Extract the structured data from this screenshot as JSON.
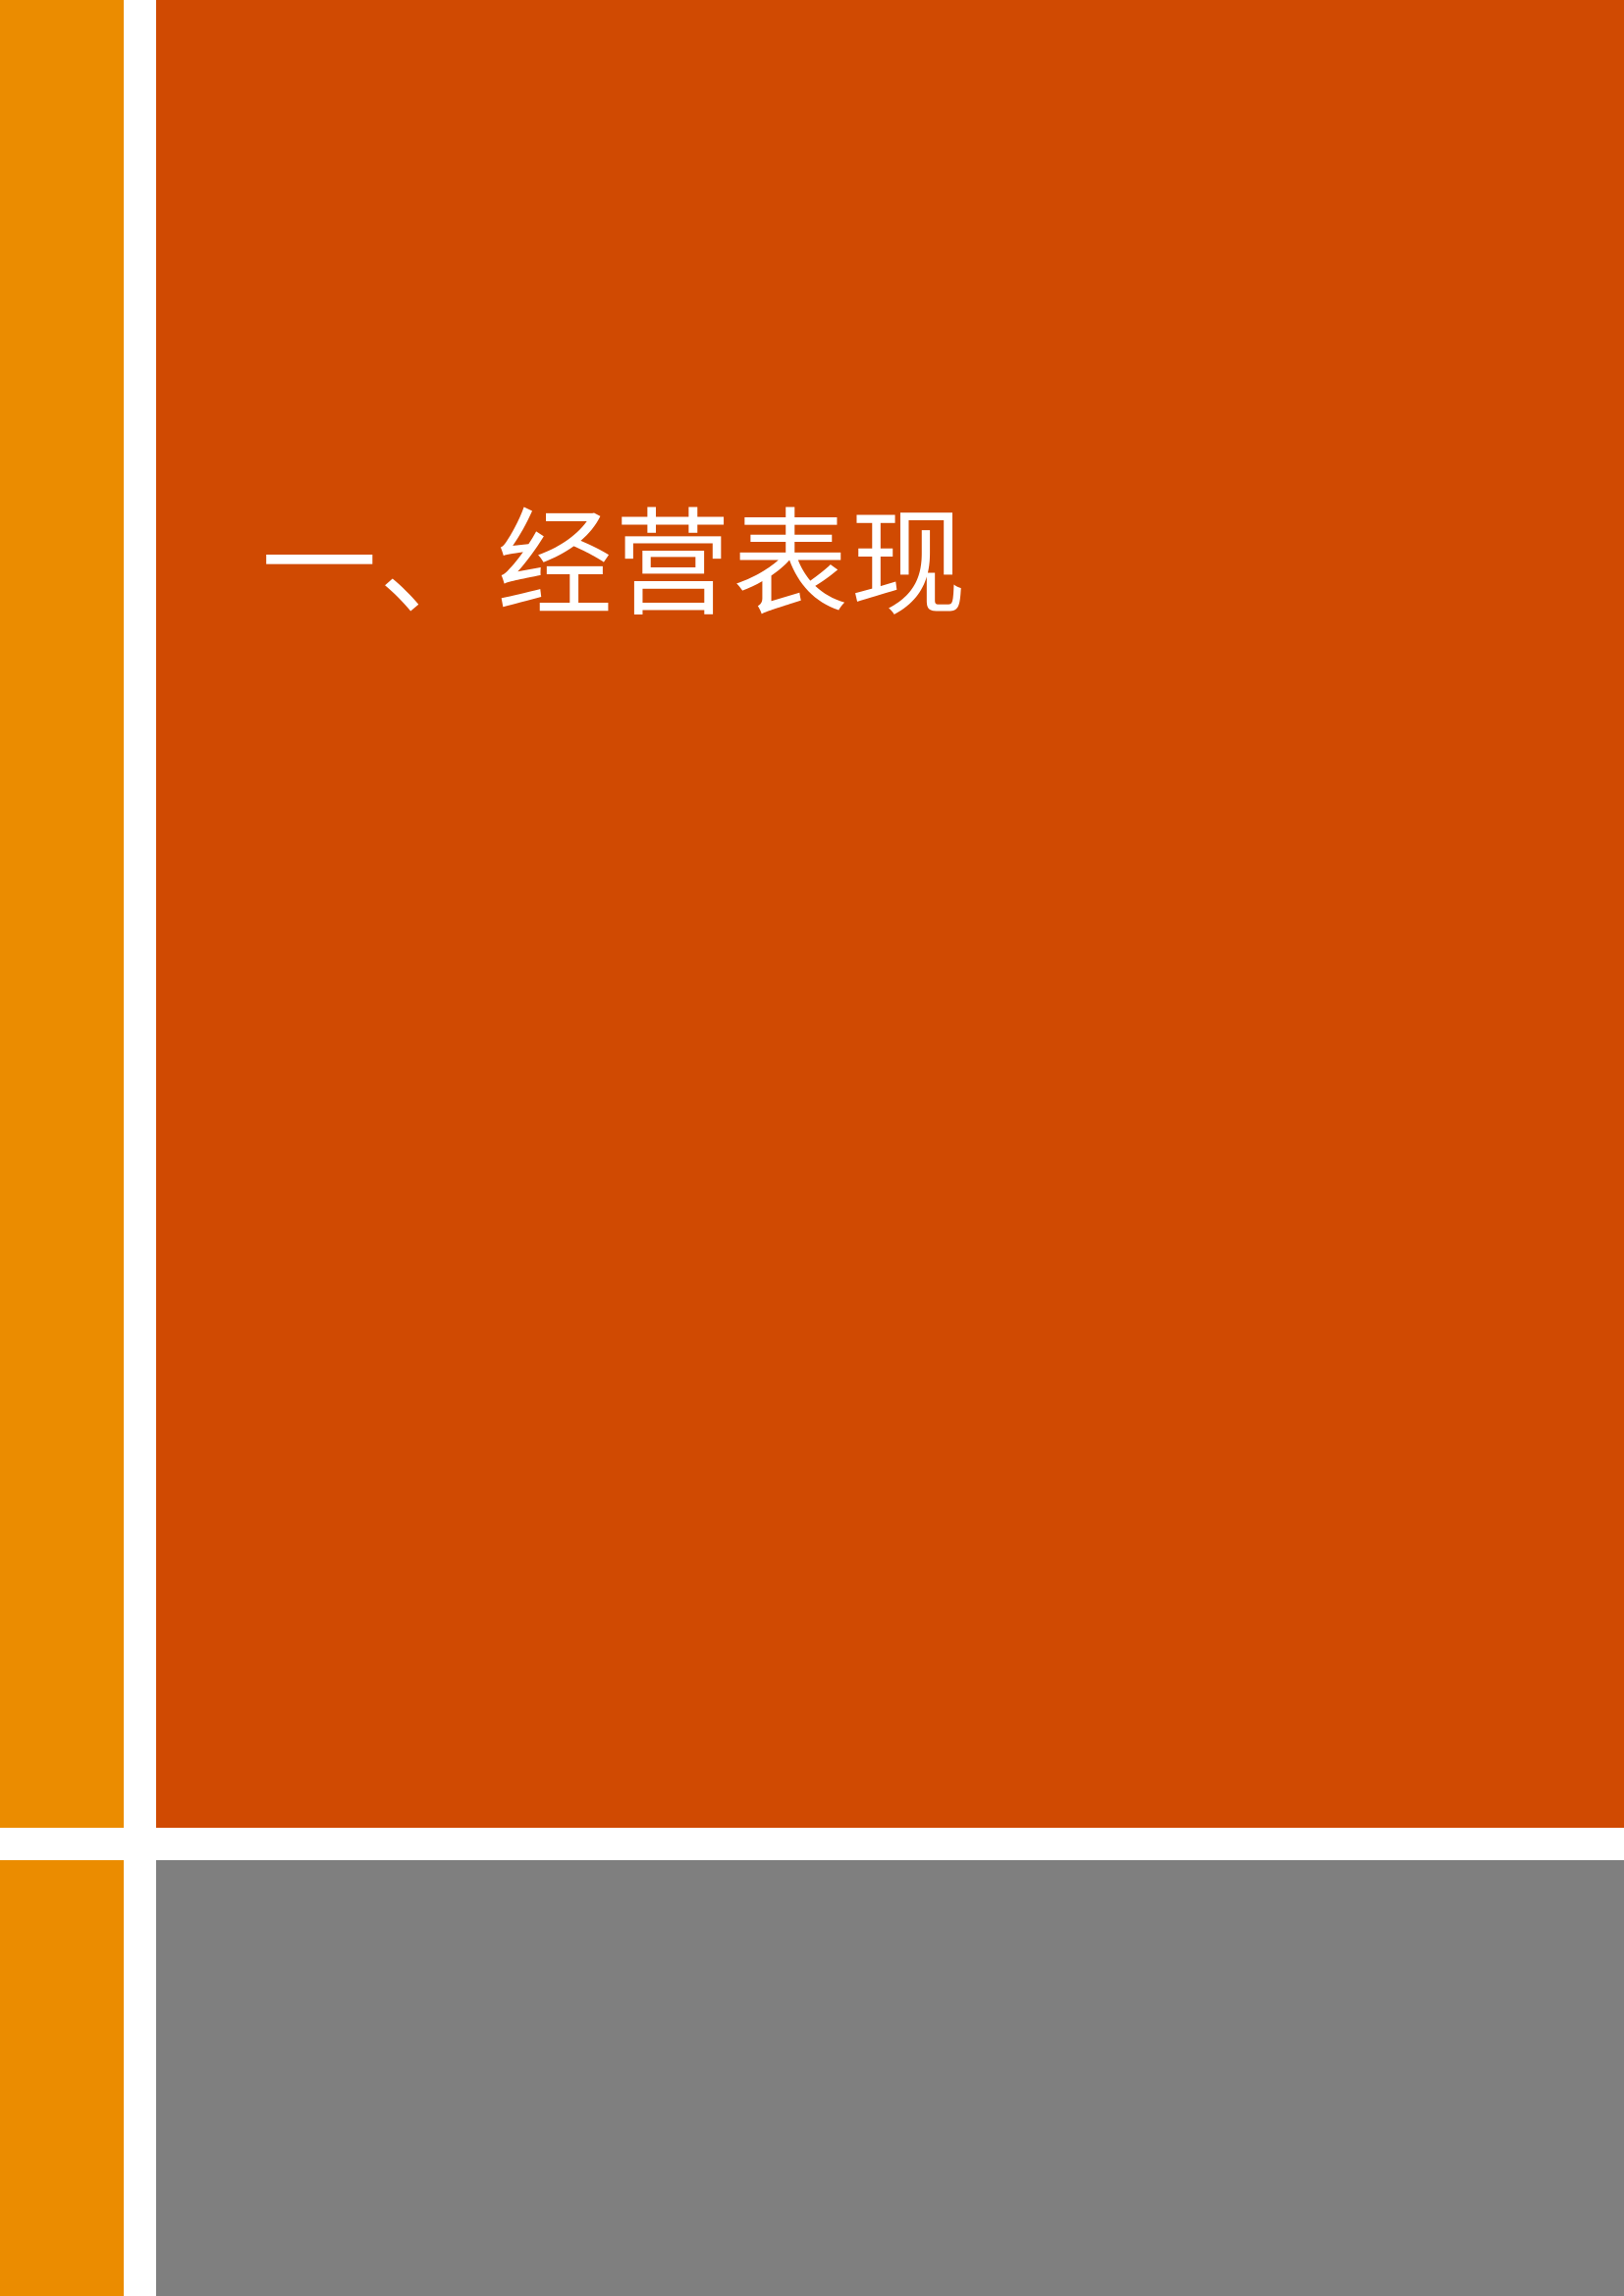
{
  "section": {
    "title": "一、经营表现"
  },
  "colors": {
    "side_accent": "#EB8C00",
    "main_panel": "#D04A02",
    "footer_panel": "#7F7F7F",
    "gap": "#FFFFFF",
    "title_text": "#FFFFFF"
  }
}
